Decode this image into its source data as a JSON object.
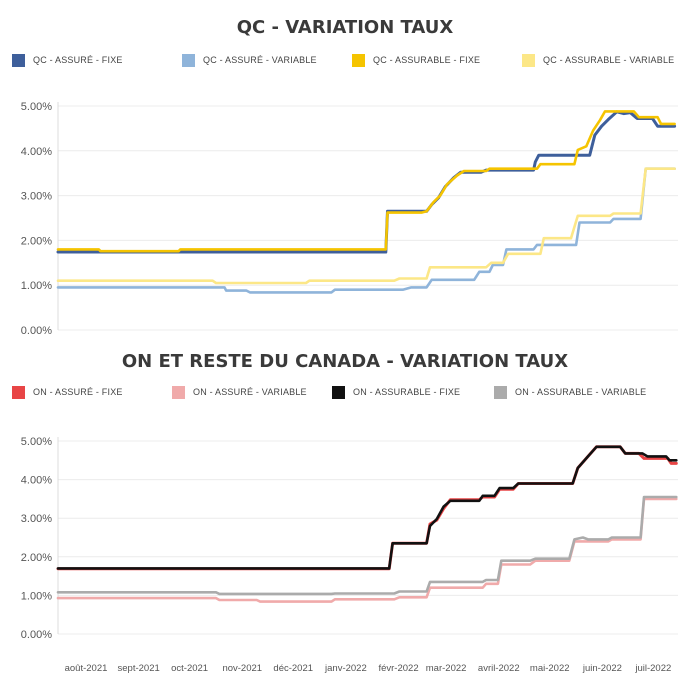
{
  "chart_data": [
    {
      "type": "line",
      "title": "QC - VARIATION TAUX",
      "ylim": [
        0,
        5
      ],
      "yticks": [
        "0.00%",
        "1.00%",
        "2.00%",
        "3.00%",
        "4.00%",
        "5.00%"
      ],
      "ytick_values": [
        0,
        1,
        2,
        3,
        4,
        5
      ],
      "x_range": [
        "2021-08-01",
        "2022-08-01"
      ],
      "grid": true,
      "legend_placement": "top",
      "series": [
        {
          "name": "QC - ASSURÉ - FIXE",
          "color": "#3E5F9B",
          "points": [
            [
              "2021-08-01",
              1.74
            ],
            [
              "2022-02-10",
              1.74
            ],
            [
              "2022-02-11",
              2.65
            ],
            [
              "2022-03-06",
              2.65
            ],
            [
              "2022-03-09",
              2.8
            ],
            [
              "2022-03-13",
              2.95
            ],
            [
              "2022-03-17",
              3.2
            ],
            [
              "2022-03-22",
              3.4
            ],
            [
              "2022-03-26",
              3.52
            ],
            [
              "2022-04-07",
              3.52
            ],
            [
              "2022-04-10",
              3.57
            ],
            [
              "2022-05-08",
              3.57
            ],
            [
              "2022-05-09",
              3.75
            ],
            [
              "2022-05-11",
              3.9
            ],
            [
              "2022-06-10",
              3.9
            ],
            [
              "2022-06-13",
              4.35
            ],
            [
              "2022-06-17",
              4.55
            ],
            [
              "2022-06-21",
              4.7
            ],
            [
              "2022-06-26",
              4.87
            ],
            [
              "2022-06-30",
              4.83
            ],
            [
              "2022-07-04",
              4.85
            ],
            [
              "2022-07-08",
              4.72
            ],
            [
              "2022-07-17",
              4.72
            ],
            [
              "2022-07-20",
              4.55
            ],
            [
              "2022-07-30",
              4.55
            ]
          ]
        },
        {
          "name": "QC - ASSURÉ - VARIABLE",
          "color": "#8FB4DA",
          "points": [
            [
              "2021-08-01",
              0.95
            ],
            [
              "2021-11-07",
              0.95
            ],
            [
              "2021-11-08",
              0.88
            ],
            [
              "2021-11-20",
              0.88
            ],
            [
              "2021-11-22",
              0.84
            ],
            [
              "2022-01-09",
              0.84
            ],
            [
              "2022-01-11",
              0.9
            ],
            [
              "2022-02-20",
              0.9
            ],
            [
              "2022-02-25",
              0.95
            ],
            [
              "2022-03-06",
              0.95
            ],
            [
              "2022-03-09",
              1.12
            ],
            [
              "2022-04-03",
              1.12
            ],
            [
              "2022-04-06",
              1.3
            ],
            [
              "2022-04-12",
              1.3
            ],
            [
              "2022-04-14",
              1.45
            ],
            [
              "2022-04-20",
              1.45
            ],
            [
              "2022-04-22",
              1.8
            ],
            [
              "2022-05-08",
              1.8
            ],
            [
              "2022-05-10",
              1.9
            ],
            [
              "2022-06-02",
              1.9
            ],
            [
              "2022-06-04",
              2.4
            ],
            [
              "2022-06-22",
              2.4
            ],
            [
              "2022-06-24",
              2.48
            ],
            [
              "2022-07-10",
              2.48
            ],
            [
              "2022-07-13",
              3.6
            ],
            [
              "2022-07-30",
              3.6
            ]
          ]
        },
        {
          "name": "QC - ASSURABLE - FIXE",
          "color": "#F5C400",
          "points": [
            [
              "2021-08-01",
              1.8
            ],
            [
              "2021-08-25",
              1.8
            ],
            [
              "2021-08-26",
              1.76
            ],
            [
              "2021-10-11",
              1.76
            ],
            [
              "2021-10-12",
              1.8
            ],
            [
              "2022-02-10",
              1.8
            ],
            [
              "2022-02-11",
              2.62
            ],
            [
              "2022-03-03",
              2.62
            ],
            [
              "2022-03-06",
              2.65
            ],
            [
              "2022-03-10",
              2.85
            ],
            [
              "2022-03-14",
              3.0
            ],
            [
              "2022-03-18",
              3.25
            ],
            [
              "2022-03-24",
              3.45
            ],
            [
              "2022-03-28",
              3.55
            ],
            [
              "2022-04-10",
              3.55
            ],
            [
              "2022-04-12",
              3.6
            ],
            [
              "2022-05-10",
              3.6
            ],
            [
              "2022-05-12",
              3.7
            ],
            [
              "2022-06-01",
              3.7
            ],
            [
              "2022-06-03",
              4.02
            ],
            [
              "2022-06-08",
              4.1
            ],
            [
              "2022-06-12",
              4.45
            ],
            [
              "2022-06-16",
              4.68
            ],
            [
              "2022-06-19",
              4.88
            ],
            [
              "2022-07-06",
              4.88
            ],
            [
              "2022-07-09",
              4.75
            ],
            [
              "2022-07-20",
              4.75
            ],
            [
              "2022-07-22",
              4.6
            ],
            [
              "2022-07-30",
              4.6
            ]
          ]
        },
        {
          "name": "QC - ASSURABLE - VARIABLE",
          "color": "#FCE787",
          "points": [
            [
              "2021-08-01",
              1.1
            ],
            [
              "2021-10-31",
              1.1
            ],
            [
              "2021-11-02",
              1.05
            ],
            [
              "2021-12-25",
              1.05
            ],
            [
              "2021-12-27",
              1.1
            ],
            [
              "2022-02-15",
              1.1
            ],
            [
              "2022-02-18",
              1.15
            ],
            [
              "2022-03-06",
              1.15
            ],
            [
              "2022-03-08",
              1.4
            ],
            [
              "2022-04-10",
              1.4
            ],
            [
              "2022-04-13",
              1.5
            ],
            [
              "2022-04-20",
              1.5
            ],
            [
              "2022-04-23",
              1.7
            ],
            [
              "2022-05-12",
              1.7
            ],
            [
              "2022-05-14",
              2.05
            ],
            [
              "2022-05-30",
              2.05
            ],
            [
              "2022-06-03",
              2.55
            ],
            [
              "2022-06-22",
              2.55
            ],
            [
              "2022-06-24",
              2.6
            ],
            [
              "2022-07-10",
              2.6
            ],
            [
              "2022-07-13",
              3.6
            ],
            [
              "2022-07-30",
              3.6
            ]
          ]
        }
      ]
    },
    {
      "type": "line",
      "title": "ON ET RESTE DU CANADA - VARIATION TAUX",
      "ylim": [
        0,
        5
      ],
      "yticks": [
        "0.00%",
        "1.00%",
        "2.00%",
        "3.00%",
        "4.00%",
        "5.00%"
      ],
      "ytick_values": [
        0,
        1,
        2,
        3,
        4,
        5
      ],
      "x_range": [
        "2021-08-01",
        "2022-08-01"
      ],
      "xticks": [
        "août-2021",
        "sept-2021",
        "oct-2021",
        "nov-2021",
        "déc-2021",
        "janv-2022",
        "févr-2022",
        "mar-2022",
        "avril-2022",
        "mai-2022",
        "juin-2022",
        "juil-2022"
      ],
      "xtick_values": [
        "2021-08-01",
        "2021-09-01",
        "2021-10-01",
        "2021-11-01",
        "2021-12-01",
        "2022-01-01",
        "2022-02-01",
        "2022-03-01",
        "2022-04-01",
        "2022-05-01",
        "2022-06-01",
        "2022-07-01"
      ],
      "grid": true,
      "legend_placement": "top",
      "series": [
        {
          "name": "ON - ASSURÉ - FIXE",
          "color": "#E84546",
          "points": [
            [
              "2021-08-01",
              1.69
            ],
            [
              "2022-02-12",
              1.69
            ],
            [
              "2022-02-14",
              2.35
            ],
            [
              "2022-03-06",
              2.35
            ],
            [
              "2022-03-08",
              2.85
            ],
            [
              "2022-03-12",
              2.95
            ],
            [
              "2022-03-16",
              3.25
            ],
            [
              "2022-03-20",
              3.48
            ],
            [
              "2022-04-06",
              3.48
            ],
            [
              "2022-04-08",
              3.55
            ],
            [
              "2022-04-15",
              3.55
            ],
            [
              "2022-04-18",
              3.75
            ],
            [
              "2022-04-26",
              3.75
            ],
            [
              "2022-04-29",
              3.9
            ],
            [
              "2022-05-31",
              3.9
            ],
            [
              "2022-06-03",
              4.3
            ],
            [
              "2022-06-09",
              4.6
            ],
            [
              "2022-06-14",
              4.85
            ],
            [
              "2022-06-28",
              4.85
            ],
            [
              "2022-07-01",
              4.68
            ],
            [
              "2022-07-09",
              4.68
            ],
            [
              "2022-07-12",
              4.55
            ],
            [
              "2022-07-26",
              4.55
            ],
            [
              "2022-07-28",
              4.42
            ],
            [
              "2022-07-31",
              4.42
            ]
          ]
        },
        {
          "name": "ON - ASSURÉ - VARIABLE",
          "color": "#F0AAAA",
          "points": [
            [
              "2021-08-01",
              0.93
            ],
            [
              "2021-11-02",
              0.93
            ],
            [
              "2021-11-04",
              0.88
            ],
            [
              "2021-11-26",
              0.88
            ],
            [
              "2021-11-28",
              0.84
            ],
            [
              "2022-01-09",
              0.84
            ],
            [
              "2022-01-11",
              0.9
            ],
            [
              "2022-02-15",
              0.9
            ],
            [
              "2022-02-18",
              0.95
            ],
            [
              "2022-03-06",
              0.95
            ],
            [
              "2022-03-08",
              1.2
            ],
            [
              "2022-04-08",
              1.2
            ],
            [
              "2022-04-10",
              1.3
            ],
            [
              "2022-04-17",
              1.3
            ],
            [
              "2022-04-19",
              1.8
            ],
            [
              "2022-05-06",
              1.8
            ],
            [
              "2022-05-09",
              1.9
            ],
            [
              "2022-05-29",
              1.9
            ],
            [
              "2022-06-01",
              2.4
            ],
            [
              "2022-06-21",
              2.4
            ],
            [
              "2022-06-23",
              2.45
            ],
            [
              "2022-07-10",
              2.45
            ],
            [
              "2022-07-12",
              3.5
            ],
            [
              "2022-07-31",
              3.5
            ]
          ]
        },
        {
          "name": "ON - ASSURABLE - FIXE",
          "color": "#111111",
          "points": [
            [
              "2021-08-01",
              1.7
            ],
            [
              "2022-02-12",
              1.7
            ],
            [
              "2022-02-14",
              2.35
            ],
            [
              "2022-03-06",
              2.35
            ],
            [
              "2022-03-08",
              2.8
            ],
            [
              "2022-03-12",
              2.98
            ],
            [
              "2022-03-16",
              3.3
            ],
            [
              "2022-03-20",
              3.45
            ],
            [
              "2022-04-06",
              3.45
            ],
            [
              "2022-04-08",
              3.58
            ],
            [
              "2022-04-15",
              3.58
            ],
            [
              "2022-04-18",
              3.78
            ],
            [
              "2022-04-26",
              3.78
            ],
            [
              "2022-04-29",
              3.9
            ],
            [
              "2022-05-31",
              3.9
            ],
            [
              "2022-06-03",
              4.3
            ],
            [
              "2022-06-09",
              4.6
            ],
            [
              "2022-06-14",
              4.85
            ],
            [
              "2022-06-28",
              4.85
            ],
            [
              "2022-07-01",
              4.68
            ],
            [
              "2022-07-11",
              4.68
            ],
            [
              "2022-07-14",
              4.6
            ],
            [
              "2022-07-25",
              4.6
            ],
            [
              "2022-07-27",
              4.5
            ],
            [
              "2022-07-31",
              4.5
            ]
          ]
        },
        {
          "name": "ON - ASSURABLE - VARIABLE",
          "color": "#ABABAB",
          "points": [
            [
              "2021-08-01",
              1.08
            ],
            [
              "2021-11-02",
              1.08
            ],
            [
              "2021-11-04",
              1.04
            ],
            [
              "2022-01-09",
              1.04
            ],
            [
              "2022-01-11",
              1.05
            ],
            [
              "2022-02-15",
              1.05
            ],
            [
              "2022-02-18",
              1.1
            ],
            [
              "2022-03-06",
              1.1
            ],
            [
              "2022-03-08",
              1.35
            ],
            [
              "2022-04-08",
              1.35
            ],
            [
              "2022-04-10",
              1.4
            ],
            [
              "2022-04-17",
              1.4
            ],
            [
              "2022-04-19",
              1.9
            ],
            [
              "2022-05-06",
              1.9
            ],
            [
              "2022-05-09",
              1.95
            ],
            [
              "2022-05-29",
              1.95
            ],
            [
              "2022-06-01",
              2.45
            ],
            [
              "2022-06-06",
              2.5
            ],
            [
              "2022-06-09",
              2.45
            ],
            [
              "2022-06-21",
              2.45
            ],
            [
              "2022-06-23",
              2.5
            ],
            [
              "2022-07-10",
              2.5
            ],
            [
              "2022-07-12",
              3.55
            ],
            [
              "2022-07-31",
              3.55
            ]
          ]
        }
      ]
    }
  ]
}
